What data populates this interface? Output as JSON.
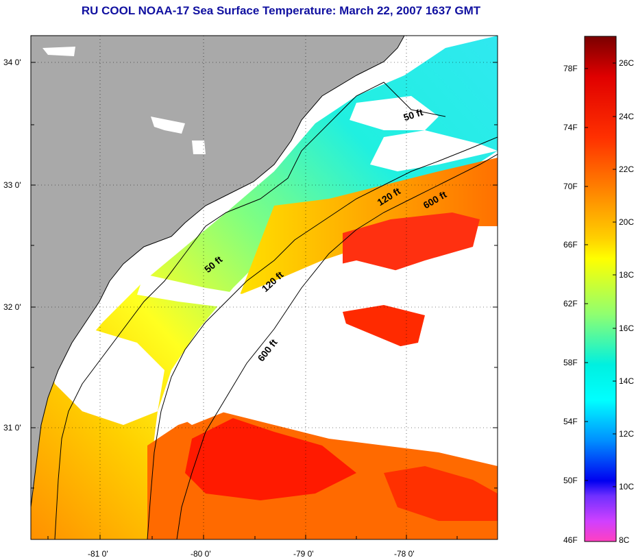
{
  "title": "RU COOL  NOAA-17  Sea Surface Temperature:  March 22, 2007 1637 GMT",
  "map": {
    "latitude_labels": [
      "34 0'",
      "33 0'",
      "32 0'",
      "31 0'"
    ],
    "longitude_labels": [
      "-81 0'",
      "-80 0'",
      "-79 0'",
      "-78 0'"
    ],
    "depth_contours": [
      "50 ft",
      "120 ft",
      "600 ft"
    ],
    "contour_labels": [
      {
        "text": "50 ft",
        "contour": "50 ft"
      },
      {
        "text": "120 ft",
        "contour": "120 ft"
      },
      {
        "text": "600 ft",
        "contour": "600 ft"
      },
      {
        "text": "50 ft",
        "contour": "50 ft"
      },
      {
        "text": "120 ft",
        "contour": "120 ft"
      },
      {
        "text": "600 ft",
        "contour": "600 ft"
      }
    ],
    "colors": {
      "land": "#a9a9a9",
      "cloud": "#ffffff",
      "grid": "#000000"
    }
  },
  "colorbar": {
    "fahrenheit_labels": [
      "78F",
      "74F",
      "70F",
      "66F",
      "62F",
      "58F",
      "54F",
      "50F",
      "46F"
    ],
    "celsius_labels": [
      "26C",
      "24C",
      "22C",
      "20C",
      "18C",
      "16C",
      "14C",
      "12C",
      "10C",
      "8C"
    ],
    "colors_top_to_bottom": [
      "#800000",
      "#ff0000",
      "#ff8000",
      "#ffff00",
      "#80ff80",
      "#00ffff",
      "#0080ff",
      "#0000ff",
      "#8000ff",
      "#ff40c0"
    ]
  }
}
